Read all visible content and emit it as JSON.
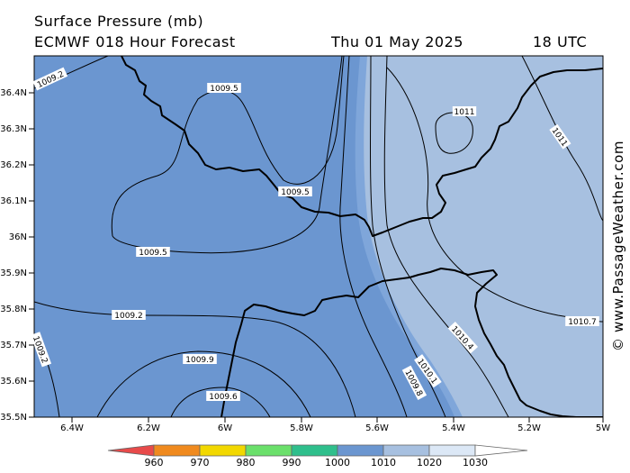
{
  "header": {
    "title": "Surface Pressure (mb)",
    "model": "ECMWF 018 Hour Forecast",
    "date": "Thu 01 May 2025",
    "time": "18 UTC"
  },
  "credit": "© www.PassageWeather.com",
  "lat_labels": [
    "36.4N",
    "36.3N",
    "36.2N",
    "36.1N",
    "36N",
    "35.9N",
    "35.8N",
    "35.7N",
    "35.6N",
    "35.5N"
  ],
  "lon_labels": [
    "6.4W",
    "6.2W",
    "6W",
    "5.8W",
    "5.6W",
    "5.4W",
    "5.2W",
    "5W"
  ],
  "isobar_labels": [
    "1009.2",
    "1009.5",
    "1009.5",
    "1009.5",
    "1009.2",
    "1009.2",
    "1009.9",
    "1009.6",
    "1011",
    "1011",
    "1010.7",
    "1010.4",
    "1010.1",
    "1009.8"
  ],
  "scale_labels": [
    "960",
    "970",
    "980",
    "990",
    "1000",
    "1010",
    "1020",
    "1030"
  ],
  "colors": {
    "sea_1005_1010": "#6b96d0",
    "sea_1010_1015": "#a7c0e0",
    "band_edge": "#7fa6da",
    "scale": [
      "#e84a4a",
      "#f08a1e",
      "#f2d800",
      "#6be06b",
      "#2fbf8c",
      "#6b96d0",
      "#a7c0e0",
      "#dce8f6",
      "#ffffff"
    ]
  }
}
